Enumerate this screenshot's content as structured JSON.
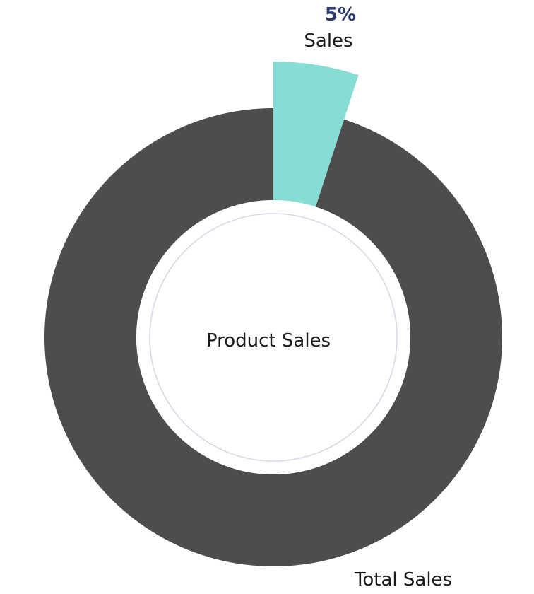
{
  "chart_data": {
    "type": "pie",
    "variant": "donut",
    "center_label": "Product Sales",
    "slices": [
      {
        "label": "Sales",
        "value": 5,
        "value_label": "5%",
        "color": "#85ddd4",
        "exploded": true,
        "label_color": "#2c3a70"
      },
      {
        "label": "Total Sales",
        "value": 95,
        "value_label": "",
        "color": "#4d4d4d",
        "exploded": false
      }
    ],
    "hole_color": "#ffffff",
    "hole_outline_color": "#d8d6e3"
  }
}
